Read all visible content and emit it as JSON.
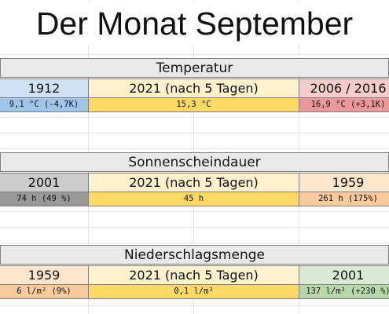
{
  "title": "Der Monat September",
  "sections": [
    {
      "title": "Temperatur",
      "cols": [
        {
          "head": "1912",
          "value": "9,1 °C (-4,7K)",
          "head_color": "#cfe2f3",
          "value_color": "#9fc5e8"
        },
        {
          "head": "2021 (nach 5 Tagen)",
          "value": "15,3 °C",
          "head_color": "#fff2cc",
          "value_color": "#ffd966"
        },
        {
          "head": "2006 / 2016",
          "value": "16,9 °C (+3,1K)",
          "head_color": "#f4cccc",
          "value_color": "#ea9999"
        }
      ]
    },
    {
      "title": "Sonnenscheindauer",
      "cols": [
        {
          "head": "2001",
          "value": "74 h (49 %)",
          "head_color": "#cccccc",
          "value_color": "#999999"
        },
        {
          "head": "2021 (nach 5 Tagen)",
          "value": "45 h",
          "head_color": "#fff2cc",
          "value_color": "#ffd966"
        },
        {
          "head": "1959",
          "value": "261 h (175%)",
          "head_color": "#fce5cd",
          "value_color": "#f9cb9c"
        }
      ]
    },
    {
      "title": "Niederschlagsmenge",
      "cols": [
        {
          "head": "1959",
          "value": "6 l/m² (9%)",
          "head_color": "#fce5cd",
          "value_color": "#f9cb9c"
        },
        {
          "head": "2021 (nach 5 Tagen)",
          "value": "0,1 l/m²",
          "head_color": "#fff2cc",
          "value_color": "#ffd966"
        },
        {
          "head": "2001",
          "value": "137 l/m² (+230 %)",
          "head_color": "#d9ead3",
          "value_color": "#b6d7a8"
        }
      ]
    }
  ]
}
